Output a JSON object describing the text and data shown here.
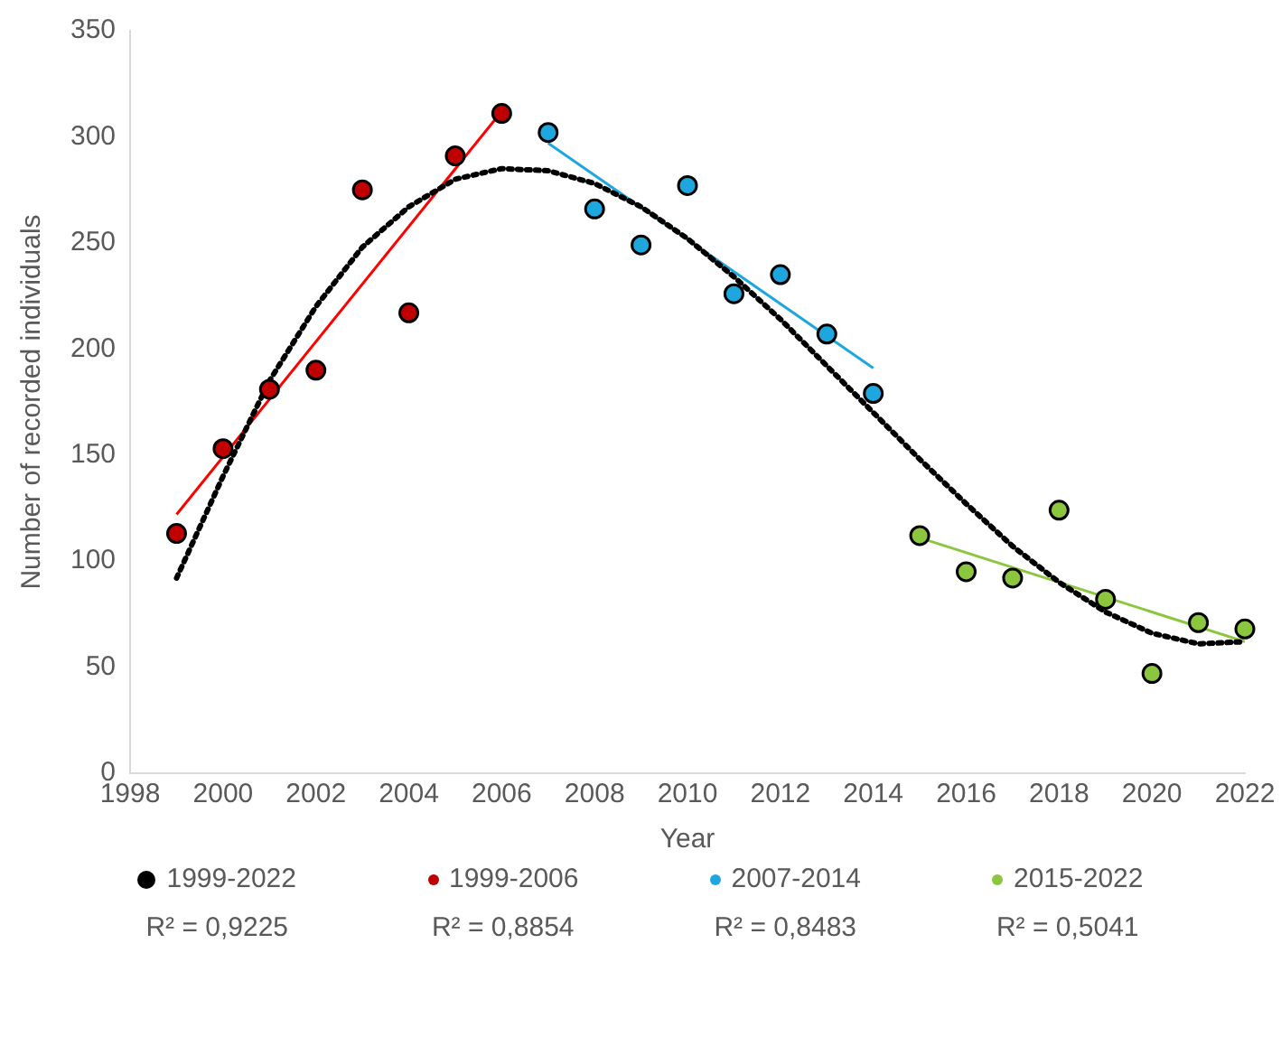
{
  "chart_data": {
    "type": "scatter",
    "xlabel": "Year",
    "ylabel": "Number of recorded individuals",
    "xlim": [
      1998,
      2022
    ],
    "xticks": [
      1998,
      2000,
      2002,
      2004,
      2006,
      2008,
      2010,
      2012,
      2014,
      2016,
      2018,
      2020,
      2022
    ],
    "ylim": [
      0,
      350
    ],
    "yticks": [
      0,
      50,
      100,
      150,
      200,
      250,
      300,
      350
    ],
    "grid": false,
    "legend": "bottom",
    "marker": "circle",
    "series": [
      {
        "name": "1999-2022",
        "type": "line",
        "line_style": "dotted",
        "marker": "none",
        "color": "#000000",
        "x": [
          1999,
          2000,
          2001,
          2002,
          2003,
          2004,
          2005,
          2006,
          2007,
          2008,
          2009,
          2010,
          2011,
          2012,
          2013,
          2014,
          2015,
          2016,
          2017,
          2018,
          2019,
          2020,
          2021,
          2022
        ],
        "values": [
          92,
          140,
          185,
          220,
          248,
          267,
          280,
          285,
          284,
          278,
          267,
          252,
          234,
          214,
          192,
          170,
          148,
          127,
          107,
          90,
          76,
          66,
          61,
          62
        ]
      },
      {
        "name": "1999-2006",
        "color": "#c00000",
        "x": [
          1999,
          2000,
          2001,
          2002,
          2003,
          2004,
          2005,
          2006
        ],
        "values": [
          113,
          153,
          181,
          190,
          275,
          217,
          291,
          311
        ]
      },
      {
        "name": "2007-2014",
        "color": "#1ea7df",
        "x": [
          2007,
          2008,
          2009,
          2010,
          2011,
          2012,
          2013,
          2014
        ],
        "values": [
          302,
          266,
          249,
          277,
          226,
          235,
          207,
          179
        ]
      },
      {
        "name": "2015-2022",
        "color": "#8cc63f",
        "x": [
          2015,
          2016,
          2017,
          2018,
          2019,
          2020,
          2021,
          2022
        ],
        "values": [
          112,
          95,
          92,
          124,
          82,
          47,
          71,
          68
        ]
      },
      {
        "type": "line",
        "line_style": "solid",
        "marker": "none",
        "color": "#ff0000",
        "x": [
          1999,
          2006
        ],
        "values": [
          122,
          312
        ]
      },
      {
        "type": "line",
        "line_style": "solid",
        "marker": "none",
        "color": "#1ea7df",
        "x": [
          2007,
          2014
        ],
        "values": [
          297,
          191
        ]
      },
      {
        "type": "line",
        "line_style": "solid",
        "marker": "none",
        "color": "#8cc63f",
        "x": [
          2015,
          2022
        ],
        "values": [
          111,
          62
        ]
      }
    ],
    "annotations": [
      "R² = 0,9225",
      "R² = 0,8854",
      "R² = 0,8483",
      "R² = 0,5041"
    ]
  }
}
